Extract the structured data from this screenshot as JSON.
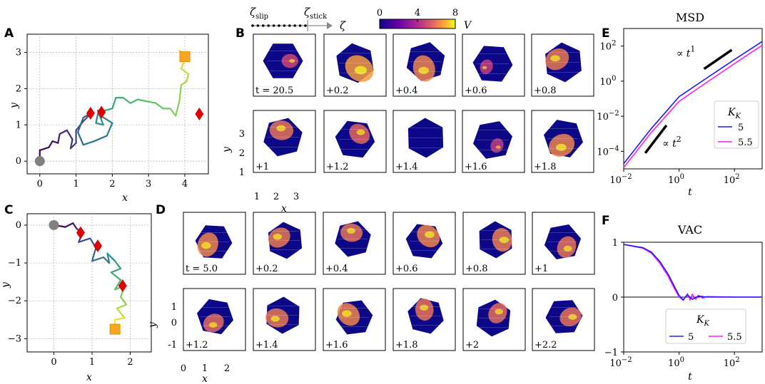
{
  "panels": {
    "A": "A",
    "B": "B",
    "C": "C",
    "D": "D",
    "E": "E",
    "F": "F"
  },
  "chart_data": [
    {
      "id": "A",
      "type": "line",
      "title": "",
      "xlabel": "x",
      "ylabel": "y",
      "xlim": [
        -0.35,
        4.65
      ],
      "ylim": [
        -0.35,
        3.5
      ],
      "xticks": [
        0,
        1,
        2,
        3,
        4
      ],
      "yticks": [
        0,
        1,
        2,
        3
      ],
      "path": [
        [
          0,
          0
        ],
        [
          0,
          0.3
        ],
        [
          0.25,
          0.38
        ],
        [
          0.35,
          0.55
        ],
        [
          0.5,
          0.5
        ],
        [
          0.55,
          0.75
        ],
        [
          0.75,
          0.85
        ],
        [
          0.9,
          0.6
        ],
        [
          0.85,
          0.35
        ],
        [
          1.0,
          0.5
        ],
        [
          1.0,
          0.85
        ],
        [
          1.2,
          1.1
        ],
        [
          1.4,
          1.3
        ],
        [
          1.6,
          1.4
        ],
        [
          1.7,
          1.2
        ],
        [
          1.8,
          1.4
        ],
        [
          2.0,
          1.45
        ],
        [
          2.1,
          1.75
        ],
        [
          2.3,
          1.75
        ],
        [
          2.5,
          1.6
        ],
        [
          2.7,
          1.7
        ],
        [
          2.95,
          1.65
        ],
        [
          3.2,
          1.6
        ],
        [
          3.4,
          1.45
        ],
        [
          3.6,
          1.45
        ],
        [
          3.75,
          1.25
        ],
        [
          3.85,
          1.65
        ],
        [
          3.9,
          2.1
        ],
        [
          4.05,
          2.2
        ],
        [
          4.1,
          2.4
        ],
        [
          3.9,
          2.55
        ],
        [
          4.0,
          2.8
        ],
        [
          3.85,
          3.05
        ],
        [
          4.0,
          2.95
        ],
        [
          4.02,
          2.88
        ]
      ],
      "loop": [
        [
          1.45,
          1.35
        ],
        [
          1.2,
          1.2
        ],
        [
          1.05,
          0.8
        ],
        [
          1.2,
          0.45
        ],
        [
          1.5,
          0.55
        ],
        [
          1.85,
          0.7
        ],
        [
          2.0,
          1.05
        ],
        [
          1.6,
          1.3
        ],
        [
          1.55,
          1.05
        ],
        [
          1.75,
          1.0
        ]
      ],
      "start": [
        0,
        0
      ],
      "end": [
        4.0,
        2.88
      ],
      "stick_events": [
        [
          1.4,
          1.32
        ],
        [
          1.7,
          1.35
        ],
        [
          4.4,
          1.3
        ]
      ]
    },
    {
      "id": "C",
      "type": "line",
      "title": "",
      "xlabel": "x",
      "ylabel": "y",
      "xlim": [
        -0.7,
        2.55
      ],
      "ylim": [
        -3.35,
        0.3
      ],
      "xticks": [
        0,
        1,
        2
      ],
      "yticks": [
        0,
        -1,
        -2,
        -3
      ],
      "path": [
        [
          0,
          0
        ],
        [
          0.3,
          -0.05
        ],
        [
          0.5,
          0.05
        ],
        [
          0.6,
          -0.1
        ],
        [
          0.75,
          -0.2
        ],
        [
          0.65,
          -0.45
        ],
        [
          0.95,
          -0.35
        ],
        [
          1.1,
          -0.6
        ],
        [
          1.0,
          -0.95
        ],
        [
          1.3,
          -0.85
        ],
        [
          1.45,
          -1.0
        ],
        [
          1.4,
          -0.75
        ],
        [
          1.6,
          -0.95
        ],
        [
          1.75,
          -1.15
        ],
        [
          1.5,
          -1.25
        ],
        [
          1.75,
          -1.45
        ],
        [
          1.6,
          -1.7
        ],
        [
          1.85,
          -1.6
        ],
        [
          1.75,
          -1.9
        ],
        [
          1.9,
          -2.1
        ],
        [
          1.65,
          -2.2
        ],
        [
          1.85,
          -2.45
        ],
        [
          1.6,
          -2.5
        ],
        [
          1.6,
          -2.75
        ]
      ],
      "start": [
        0,
        0
      ],
      "end": [
        1.6,
        -2.75
      ],
      "stick_events": [
        [
          0.7,
          -0.2
        ],
        [
          1.15,
          -0.55
        ],
        [
          1.8,
          -1.6
        ]
      ]
    },
    {
      "id": "E",
      "type": "line",
      "title": "MSD",
      "xlabel": "t",
      "ylabel": "",
      "xscale": "log",
      "yscale": "log",
      "xlim": [
        0.01,
        1000
      ],
      "ylim": [
        1e-05,
        1000
      ],
      "xticks": [
        "10^-2",
        "10^0",
        "10^2"
      ],
      "yticks": [
        "10^2",
        "10^0",
        "10^-2",
        "10^-4"
      ],
      "series": [
        {
          "name": "5",
          "color": "#1a1aff",
          "x": [
            0.01,
            0.1,
            1,
            10,
            100,
            1000
          ],
          "y": [
            2e-05,
            0.002,
            0.13,
            1.5,
            17,
            180
          ]
        },
        {
          "name": "5.5",
          "color": "#ff1aff",
          "x": [
            0.01,
            0.1,
            1,
            10,
            100,
            1000
          ],
          "y": [
            1.2e-05,
            0.0012,
            0.07,
            0.85,
            10,
            110
          ]
        }
      ],
      "annotations": [
        {
          "text": "∝ t",
          "sup": "1"
        },
        {
          "text": "∝ t",
          "sup": "2"
        }
      ],
      "legend_title": "K",
      "legend_title_sub": "K",
      "legend_position": "center-right"
    },
    {
      "id": "F",
      "type": "line",
      "title": "VAC",
      "xlabel": "t",
      "ylabel": "",
      "xscale": "log",
      "xlim": [
        0.01,
        1000
      ],
      "ylim": [
        -1,
        1
      ],
      "xticks": [
        "10^-2",
        "10^0",
        "10^2"
      ],
      "yticks": [
        "1",
        "0",
        "-1"
      ],
      "series": [
        {
          "name": "5",
          "color": "#1a1aff",
          "x": [
            0.01,
            0.05,
            0.1,
            0.2,
            0.4,
            0.7,
            1.0,
            1.4,
            2,
            3,
            5,
            10,
            100,
            1000
          ],
          "y": [
            0.96,
            0.9,
            0.82,
            0.65,
            0.42,
            0.18,
            0.03,
            -0.05,
            0.04,
            -0.04,
            0.02,
            0.0,
            0.0,
            0.0
          ]
        },
        {
          "name": "5.5",
          "color": "#ff1aff",
          "x": [
            0.01,
            0.05,
            0.1,
            0.2,
            0.4,
            0.7,
            1.0,
            1.4,
            2,
            2.5,
            3,
            4,
            5,
            7,
            10,
            100,
            1000
          ],
          "y": [
            0.96,
            0.89,
            0.8,
            0.62,
            0.38,
            0.14,
            0.0,
            -0.06,
            0.06,
            -0.05,
            0.05,
            -0.04,
            0.03,
            -0.02,
            0.01,
            0.0,
            0.0
          ]
        }
      ],
      "legend_title": "K",
      "legend_title_sub": "K",
      "legend_position": "bottom-center"
    },
    {
      "id": "B",
      "type": "heatmap",
      "title": "",
      "colorbar": {
        "label": "V",
        "min": 0,
        "max": 8,
        "ticks": [
          "0",
          "4",
          "8"
        ]
      },
      "zeta_labels": {
        "slip": "slip",
        "stick": "stick",
        "axis": "ζ"
      },
      "frame_labels": [
        "t = 20.5",
        "+0.2",
        "+0.4",
        "+0.6",
        "+0.8",
        "+1",
        "+1.2",
        "+1.4",
        "+1.6",
        "+1.8"
      ],
      "xticks": [
        "1",
        "2",
        "3"
      ],
      "yticks": [
        "1",
        "2",
        "3"
      ],
      "xlabel": "x",
      "ylabel": "y",
      "intensity": [
        0.15,
        0.9,
        0.7,
        0.05,
        0.6,
        0.55,
        0.45,
        0.0,
        0.05,
        0.7
      ]
    },
    {
      "id": "D",
      "type": "heatmap",
      "title": "",
      "frame_labels": [
        "t = 5.0",
        "+0.2",
        "+0.4",
        "+0.6",
        "+0.8",
        "+1",
        "+1.2",
        "+1.4",
        "+1.6",
        "+1.8",
        "+2",
        "+2.2"
      ],
      "xticks": [
        "0",
        "1",
        "2"
      ],
      "yticks": [
        "1",
        "0",
        "-1"
      ],
      "xlabel": "x",
      "ylabel": "y",
      "intensity": [
        0.7,
        0.6,
        0.55,
        0.7,
        0.65,
        0.55,
        0.5,
        0.6,
        0.7,
        0.55,
        0.5,
        0.55
      ]
    }
  ]
}
